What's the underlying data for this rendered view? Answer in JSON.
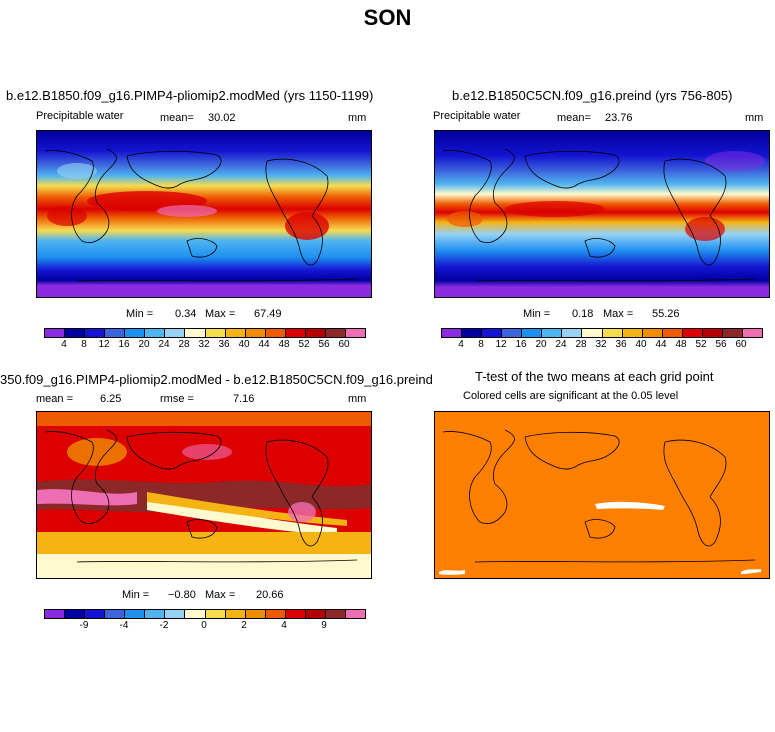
{
  "season": "SON",
  "panels": {
    "p1": {
      "title": "b.e12.B1850.f09_g16.PIMP4-pliomip2.modMed (yrs 1150-1199)",
      "field": "Precipitable water",
      "mean_label": "mean=",
      "mean": "30.02",
      "units": "mm",
      "min_label": "Min =",
      "min": "0.34",
      "max_label": "Max =",
      "max": "67.49"
    },
    "p2": {
      "title": "b.e12.B1850C5CN.f09_g16.preind (yrs 756-805)",
      "field": "Precipitable water",
      "mean_label": "mean=",
      "mean": "23.76",
      "units": "mm",
      "min_label": "Min =",
      "min": "0.18",
      "max_label": "Max =",
      "max": "55.26"
    },
    "p3": {
      "title": "350.f09_g16.PIMP4-pliomip2.modMed - b.e12.B1850C5CN.f09_g16.preind",
      "mean_label": "mean =",
      "mean": "6.25",
      "rmse_label": "rmse =",
      "rmse": "7.16",
      "units": "mm",
      "min_label": "Min =",
      "min": "−0.80",
      "max_label": "Max =",
      "max": "20.66"
    },
    "p4": {
      "title": "T-test of the two means at each grid point",
      "subtitle": "Colored cells are significant at the 0.05 level"
    }
  },
  "colorbars": {
    "field": {
      "colors": [
        "#8a2be2",
        "#0000a0",
        "#1414d2",
        "#3c64dc",
        "#1e90f0",
        "#50b4f0",
        "#96d2f5",
        "#fffacd",
        "#f5dc50",
        "#f5b414",
        "#f08c00",
        "#ee5a00",
        "#dc0000",
        "#b40000",
        "#8c2828",
        "#ee6eb4"
      ],
      "labels": [
        "4",
        "8",
        "12",
        "16",
        "20",
        "24",
        "28",
        "32",
        "36",
        "40",
        "44",
        "48",
        "52",
        "56",
        "60"
      ]
    },
    "diff": {
      "colors": [
        "#8a2be2",
        "#0000a0",
        "#1414d2",
        "#3c64dc",
        "#1e90f0",
        "#50b4f0",
        "#96d2f5",
        "#fffacd",
        "#f5dc50",
        "#f5b414",
        "#f08c00",
        "#ee5a00",
        "#dc0000",
        "#b40000",
        "#8c2828",
        "#ee6eb4"
      ],
      "labels": [
        "-9",
        "-4",
        "-2",
        "0",
        "2",
        "4",
        "9"
      ],
      "label_slots": [
        1,
        3,
        5,
        7,
        9,
        11,
        13
      ]
    }
  },
  "map_colors": {
    "ttest": "#ff7f00"
  }
}
